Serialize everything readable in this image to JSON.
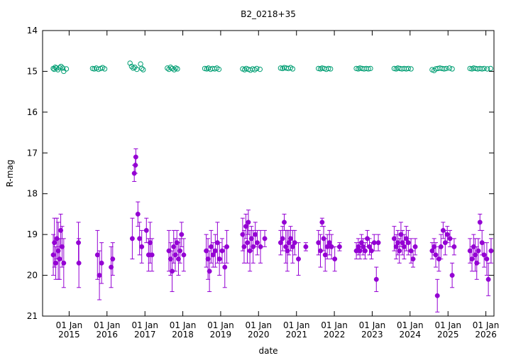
{
  "chart_data": {
    "type": "scatter",
    "title": "B2_0218+35",
    "xlabel": "date",
    "ylabel": "R-mag",
    "ylim": [
      21,
      14
    ],
    "y_inverted": true,
    "yticks": [
      14,
      15,
      16,
      17,
      18,
      19,
      20,
      21
    ],
    "xlim": [
      "2014-04-20",
      "2026-03-20"
    ],
    "xticks": [
      {
        "date": "2015-01-01",
        "label_top": "01 Jan",
        "label_bottom": "2015"
      },
      {
        "date": "2016-01-01",
        "label_top": "01 Jan",
        "label_bottom": "2016"
      },
      {
        "date": "2017-01-01",
        "label_top": "01 Jan",
        "label_bottom": "2017"
      },
      {
        "date": "2018-01-01",
        "label_top": "01 Jan",
        "label_bottom": "2018"
      },
      {
        "date": "2019-01-01",
        "label_top": "01 Jan",
        "label_bottom": "2019"
      },
      {
        "date": "2020-01-01",
        "label_top": "01 Jan",
        "label_bottom": "2020"
      },
      {
        "date": "2021-01-01",
        "label_top": "01 Jan",
        "label_bottom": "2021"
      },
      {
        "date": "2022-01-01",
        "label_top": "01 Jan",
        "label_bottom": "2022"
      },
      {
        "date": "2023-01-01",
        "label_top": "01 Jan",
        "label_bottom": "2023"
      },
      {
        "date": "2024-01-01",
        "label_top": "01 Jan",
        "label_bottom": "2024"
      },
      {
        "date": "2025-01-01",
        "label_top": "01 Jan",
        "label_bottom": "2025"
      },
      {
        "date": "2026-01-01",
        "label_top": "01 Jan",
        "label_bottom": "2026"
      }
    ],
    "grid": false,
    "legend": "none",
    "series": [
      {
        "marker": "open-circle",
        "color": "#009e73",
        "points": [
          [
            "2014-08-01",
            14.93
          ],
          [
            "2014-08-10",
            14.95
          ],
          [
            "2014-08-20",
            14.9
          ],
          [
            "2014-09-01",
            14.92
          ],
          [
            "2014-09-15",
            14.96
          ],
          [
            "2014-10-01",
            14.91
          ],
          [
            "2014-10-15",
            14.88
          ],
          [
            "2014-11-01",
            14.92
          ],
          [
            "2014-11-10",
            15.0
          ],
          [
            "2014-12-05",
            14.94
          ],
          [
            "2015-08-15",
            14.93
          ],
          [
            "2015-09-01",
            14.94
          ],
          [
            "2015-09-20",
            14.92
          ],
          [
            "2015-10-10",
            14.95
          ],
          [
            "2015-11-01",
            14.93
          ],
          [
            "2015-11-20",
            14.91
          ],
          [
            "2015-12-10",
            14.94
          ],
          [
            "2016-08-10",
            14.8
          ],
          [
            "2016-08-25",
            14.88
          ],
          [
            "2016-09-10",
            14.92
          ],
          [
            "2016-09-25",
            14.9
          ],
          [
            "2016-10-15",
            14.95
          ],
          [
            "2016-11-20",
            14.82
          ],
          [
            "2016-12-01",
            14.93
          ],
          [
            "2016-12-15",
            14.96
          ],
          [
            "2017-08-05",
            14.92
          ],
          [
            "2017-08-20",
            14.95
          ],
          [
            "2017-09-05",
            14.9
          ],
          [
            "2017-09-20",
            14.93
          ],
          [
            "2017-10-10",
            14.96
          ],
          [
            "2017-10-25",
            14.92
          ],
          [
            "2017-11-10",
            14.94
          ],
          [
            "2018-08-01",
            14.93
          ],
          [
            "2018-08-20",
            14.94
          ],
          [
            "2018-09-05",
            14.92
          ],
          [
            "2018-09-25",
            14.95
          ],
          [
            "2018-10-15",
            14.93
          ],
          [
            "2018-11-05",
            14.94
          ],
          [
            "2018-11-25",
            14.92
          ],
          [
            "2018-12-15",
            14.95
          ],
          [
            "2019-08-01",
            14.94
          ],
          [
            "2019-08-20",
            14.96
          ],
          [
            "2019-09-05",
            14.93
          ],
          [
            "2019-09-25",
            14.95
          ],
          [
            "2019-10-15",
            14.97
          ],
          [
            "2019-11-05",
            14.94
          ],
          [
            "2019-11-25",
            14.96
          ],
          [
            "2019-12-15",
            14.93
          ],
          [
            "2020-01-15",
            14.95
          ],
          [
            "2020-08-01",
            14.92
          ],
          [
            "2020-08-20",
            14.93
          ],
          [
            "2020-09-05",
            14.91
          ],
          [
            "2020-09-25",
            14.92
          ],
          [
            "2020-10-15",
            14.93
          ],
          [
            "2020-11-05",
            14.91
          ],
          [
            "2020-11-25",
            14.94
          ],
          [
            "2021-08-01",
            14.93
          ],
          [
            "2021-08-20",
            14.94
          ],
          [
            "2021-09-05",
            14.92
          ],
          [
            "2021-09-25",
            14.93
          ],
          [
            "2021-10-15",
            14.95
          ],
          [
            "2021-11-05",
            14.93
          ],
          [
            "2021-11-25",
            14.94
          ],
          [
            "2022-08-01",
            14.93
          ],
          [
            "2022-08-20",
            14.94
          ],
          [
            "2022-09-05",
            14.92
          ],
          [
            "2022-09-25",
            14.93
          ],
          [
            "2022-10-15",
            14.94
          ],
          [
            "2022-11-05",
            14.93
          ],
          [
            "2022-11-25",
            14.94
          ],
          [
            "2022-12-15",
            14.93
          ],
          [
            "2023-08-01",
            14.93
          ],
          [
            "2023-08-20",
            14.94
          ],
          [
            "2023-09-05",
            14.92
          ],
          [
            "2023-09-25",
            14.93
          ],
          [
            "2023-10-15",
            14.94
          ],
          [
            "2023-11-05",
            14.93
          ],
          [
            "2023-11-25",
            14.94
          ],
          [
            "2023-12-15",
            14.93
          ],
          [
            "2024-01-10",
            14.94
          ],
          [
            "2024-08-01",
            14.96
          ],
          [
            "2024-08-20",
            14.98
          ],
          [
            "2024-09-05",
            14.94
          ],
          [
            "2024-09-25",
            14.93
          ],
          [
            "2024-10-15",
            14.92
          ],
          [
            "2024-11-05",
            14.93
          ],
          [
            "2024-11-25",
            14.94
          ],
          [
            "2024-12-15",
            14.93
          ],
          [
            "2025-01-15",
            14.92
          ],
          [
            "2025-02-10",
            14.94
          ],
          [
            "2025-08-01",
            14.93
          ],
          [
            "2025-08-20",
            14.94
          ],
          [
            "2025-09-05",
            14.92
          ],
          [
            "2025-09-25",
            14.93
          ],
          [
            "2025-10-15",
            14.94
          ],
          [
            "2025-11-05",
            14.93
          ],
          [
            "2025-11-25",
            14.94
          ],
          [
            "2025-12-15",
            14.93
          ],
          [
            "2026-01-15",
            14.94
          ],
          [
            "2026-02-15",
            14.93
          ]
        ]
      },
      {
        "marker": "filled-circle",
        "color": "#9400d3",
        "points": [
          [
            "2014-08-01",
            19.5,
            0.5
          ],
          [
            "2014-08-12",
            19.2,
            0.6
          ],
          [
            "2014-08-25",
            19.7,
            0.4
          ],
          [
            "2014-09-05",
            19.1,
            0.5
          ],
          [
            "2014-09-18",
            19.4,
            0.7
          ],
          [
            "2014-10-01",
            19.6,
            0.5
          ],
          [
            "2014-10-12",
            18.9,
            0.4
          ],
          [
            "2014-10-25",
            19.3,
            0.5
          ],
          [
            "2014-11-10",
            19.7,
            0.6
          ],
          [
            "2015-04-01",
            19.2,
            0.5
          ],
          [
            "2015-04-05",
            19.7,
            0.6
          ],
          [
            "2015-10-01",
            19.5,
            0.6
          ],
          [
            "2015-10-20",
            20.0,
            0.6
          ],
          [
            "2015-11-10",
            19.7,
            0.5
          ],
          [
            "2016-02-10",
            19.8,
            0.5
          ],
          [
            "2016-02-25",
            19.6,
            0.4
          ],
          [
            "2016-09-01",
            19.1,
            0.5
          ],
          [
            "2016-09-20",
            17.5,
            0.2
          ],
          [
            "2016-10-01",
            17.3,
            0.2
          ],
          [
            "2016-10-05",
            17.1,
            0.2
          ],
          [
            "2016-10-25",
            18.5,
            0.3
          ],
          [
            "2016-11-10",
            19.1,
            0.4
          ],
          [
            "2016-12-01",
            19.3,
            0.4
          ],
          [
            "2017-01-15",
            18.9,
            0.3
          ],
          [
            "2017-02-05",
            19.5,
            0.4
          ],
          [
            "2017-02-20",
            19.2,
            0.5
          ],
          [
            "2017-03-10",
            19.5,
            0.4
          ],
          [
            "2017-08-20",
            19.4,
            0.5
          ],
          [
            "2017-09-05",
            19.6,
            0.4
          ],
          [
            "2017-09-20",
            19.9,
            0.5
          ],
          [
            "2017-10-05",
            19.3,
            0.4
          ],
          [
            "2017-10-20",
            19.5,
            0.4
          ],
          [
            "2017-11-05",
            19.2,
            0.3
          ],
          [
            "2017-11-20",
            19.6,
            0.4
          ],
          [
            "2017-12-05",
            19.4,
            0.3
          ],
          [
            "2017-12-20",
            19.0,
            0.3
          ],
          [
            "2018-01-10",
            19.5,
            0.4
          ],
          [
            "2018-08-15",
            19.4,
            0.4
          ],
          [
            "2018-09-01",
            19.6,
            0.5
          ],
          [
            "2018-09-15",
            19.9,
            0.5
          ],
          [
            "2018-10-01",
            19.3,
            0.4
          ],
          [
            "2018-10-20",
            19.5,
            0.3
          ],
          [
            "2018-11-10",
            19.4,
            0.4
          ],
          [
            "2018-12-01",
            19.2,
            0.5
          ],
          [
            "2018-12-20",
            19.6,
            0.4
          ],
          [
            "2019-01-15",
            19.4,
            0.3
          ],
          [
            "2019-02-10",
            19.8,
            0.5
          ],
          [
            "2019-03-01",
            19.3,
            0.4
          ],
          [
            "2019-08-01",
            19.0,
            0.4
          ],
          [
            "2019-08-15",
            19.3,
            0.4
          ],
          [
            "2019-09-01",
            18.8,
            0.3
          ],
          [
            "2019-09-15",
            19.2,
            0.5
          ],
          [
            "2019-09-25",
            18.7,
            0.3
          ],
          [
            "2019-10-10",
            19.4,
            0.5
          ],
          [
            "2019-10-25",
            19.1,
            0.3
          ],
          [
            "2019-11-10",
            19.3,
            0.4
          ],
          [
            "2019-12-01",
            19.0,
            0.3
          ],
          [
            "2019-12-20",
            19.2,
            0.3
          ],
          [
            "2020-01-20",
            19.3,
            0.4
          ],
          [
            "2020-03-01",
            19.1,
            0.2
          ],
          [
            "2020-08-01",
            19.2,
            0.3
          ],
          [
            "2020-08-20",
            19.1,
            0.3
          ],
          [
            "2020-09-05",
            18.7,
            0.2
          ],
          [
            "2020-09-20",
            19.3,
            0.4
          ],
          [
            "2020-10-05",
            19.4,
            0.5
          ],
          [
            "2020-10-20",
            19.2,
            0.3
          ],
          [
            "2020-11-05",
            19.1,
            0.3
          ],
          [
            "2020-11-25",
            19.3,
            0.4
          ],
          [
            "2020-12-15",
            19.2,
            0.3
          ],
          [
            "2021-01-20",
            19.6,
            0.4
          ],
          [
            "2021-04-01",
            19.3,
            0.1
          ],
          [
            "2021-08-01",
            19.2,
            0.3
          ],
          [
            "2021-08-20",
            19.4,
            0.4
          ],
          [
            "2021-09-05",
            18.7,
            0.1
          ],
          [
            "2021-09-20",
            19.1,
            0.3
          ],
          [
            "2021-10-05",
            19.5,
            0.4
          ],
          [
            "2021-10-25",
            19.3,
            0.3
          ],
          [
            "2021-11-15",
            19.2,
            0.3
          ],
          [
            "2021-12-05",
            19.3,
            0.3
          ],
          [
            "2022-01-05",
            19.6,
            0.3
          ],
          [
            "2022-02-20",
            19.3,
            0.1
          ],
          [
            "2022-08-01",
            19.4,
            0.2
          ],
          [
            "2022-08-20",
            19.3,
            0.2
          ],
          [
            "2022-09-05",
            19.4,
            0.2
          ],
          [
            "2022-09-20",
            19.2,
            0.2
          ],
          [
            "2022-10-05",
            19.3,
            0.2
          ],
          [
            "2022-10-25",
            19.4,
            0.2
          ],
          [
            "2022-11-15",
            19.1,
            0.2
          ],
          [
            "2022-12-05",
            19.3,
            0.2
          ],
          [
            "2022-12-25",
            19.4,
            0.2
          ],
          [
            "2023-01-20",
            19.2,
            0.2
          ],
          [
            "2023-02-10",
            20.1,
            0.3
          ],
          [
            "2023-03-01",
            19.2,
            0.2
          ],
          [
            "2023-08-01",
            19.1,
            0.3
          ],
          [
            "2023-08-20",
            19.3,
            0.3
          ],
          [
            "2023-09-05",
            19.2,
            0.3
          ],
          [
            "2023-09-20",
            19.4,
            0.3
          ],
          [
            "2023-10-05",
            19.0,
            0.3
          ],
          [
            "2023-10-20",
            19.2,
            0.3
          ],
          [
            "2023-11-05",
            19.3,
            0.3
          ],
          [
            "2023-11-25",
            19.1,
            0.3
          ],
          [
            "2023-12-15",
            19.2,
            0.3
          ],
          [
            "2024-01-10",
            19.4,
            0.3
          ],
          [
            "2024-01-30",
            19.6,
            0.2
          ],
          [
            "2024-02-20",
            19.3,
            0.2
          ],
          [
            "2024-08-01",
            19.4,
            0.2
          ],
          [
            "2024-08-20",
            19.3,
            0.2
          ],
          [
            "2024-09-05",
            19.5,
            0.3
          ],
          [
            "2024-09-20",
            20.5,
            0.4
          ],
          [
            "2024-10-05",
            19.6,
            0.3
          ],
          [
            "2024-10-25",
            19.3,
            0.3
          ],
          [
            "2024-11-15",
            18.9,
            0.2
          ],
          [
            "2024-12-05",
            19.2,
            0.3
          ],
          [
            "2024-12-25",
            19.0,
            0.2
          ],
          [
            "2025-01-20",
            19.1,
            0.2
          ],
          [
            "2025-02-10",
            20.0,
            0.3
          ],
          [
            "2025-03-01",
            19.3,
            0.2
          ],
          [
            "2025-08-01",
            19.4,
            0.3
          ],
          [
            "2025-08-20",
            19.6,
            0.3
          ],
          [
            "2025-09-05",
            19.3,
            0.3
          ],
          [
            "2025-09-20",
            19.5,
            0.4
          ],
          [
            "2025-10-05",
            19.7,
            0.4
          ],
          [
            "2025-10-20",
            19.4,
            0.3
          ],
          [
            "2025-11-05",
            18.7,
            0.2
          ],
          [
            "2025-11-25",
            19.2,
            0.3
          ],
          [
            "2025-12-15",
            19.5,
            0.3
          ],
          [
            "2026-01-10",
            19.6,
            0.4
          ],
          [
            "2026-01-25",
            20.1,
            0.4
          ],
          [
            "2026-02-20",
            19.4,
            0.3
          ]
        ]
      }
    ]
  }
}
